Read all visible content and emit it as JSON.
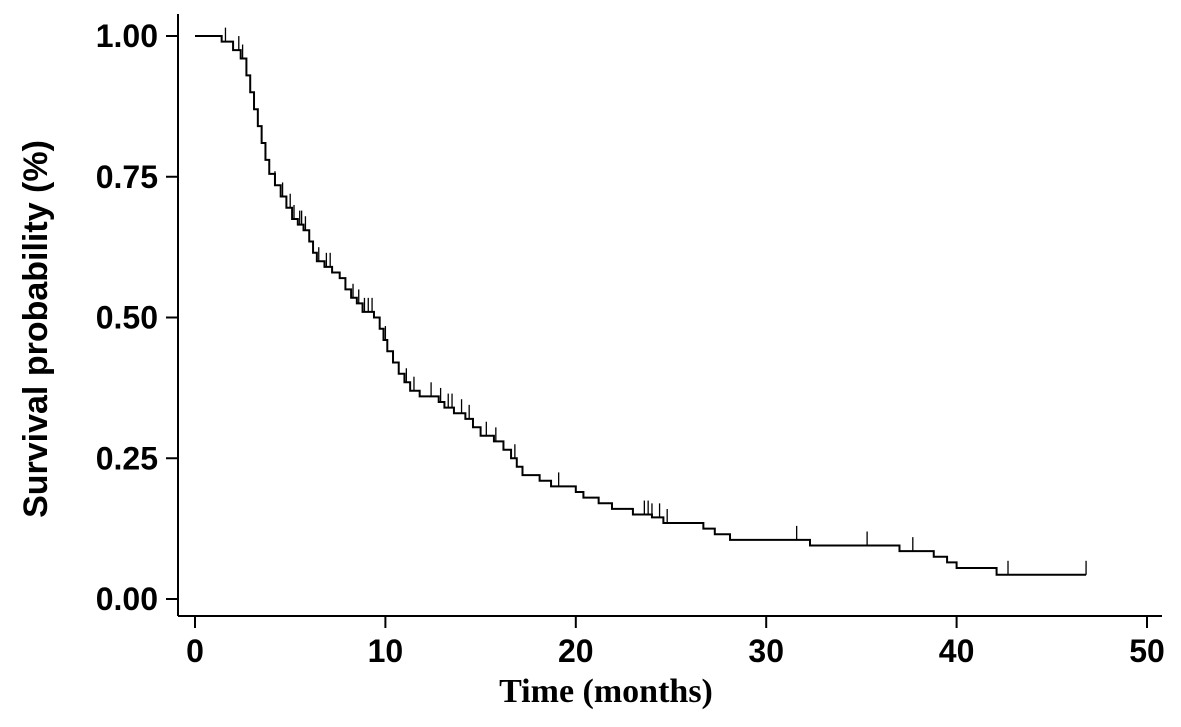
{
  "chart_data": {
    "type": "line",
    "subtype": "kaplan-meier",
    "xlabel": "Time (months)",
    "ylabel": "Survival probability (%)",
    "xlim": [
      0,
      50
    ],
    "ylim": [
      0,
      1
    ],
    "xticks": [
      0,
      10,
      20,
      30,
      40,
      50
    ],
    "xtick_labels": [
      "0",
      "10",
      "20",
      "30",
      "40",
      "50"
    ],
    "yticks": [
      0,
      0.25,
      0.5,
      0.75,
      1.0
    ],
    "ytick_labels": [
      "0.00",
      "0.25",
      "0.50",
      "0.75",
      "1.00"
    ],
    "grid": false,
    "line_color": "#000000",
    "series": [
      {
        "step_points": [
          [
            0,
            1.0
          ],
          [
            1.4,
            0.99
          ],
          [
            2.0,
            0.975
          ],
          [
            2.4,
            0.96
          ],
          [
            2.7,
            0.93
          ],
          [
            2.9,
            0.9
          ],
          [
            3.1,
            0.87
          ],
          [
            3.3,
            0.84
          ],
          [
            3.5,
            0.81
          ],
          [
            3.7,
            0.78
          ],
          [
            3.9,
            0.755
          ],
          [
            4.2,
            0.735
          ],
          [
            4.5,
            0.715
          ],
          [
            4.8,
            0.695
          ],
          [
            5.1,
            0.675
          ],
          [
            5.4,
            0.665
          ],
          [
            5.7,
            0.655
          ],
          [
            6.0,
            0.635
          ],
          [
            6.2,
            0.615
          ],
          [
            6.4,
            0.6
          ],
          [
            6.8,
            0.59
          ],
          [
            7.2,
            0.58
          ],
          [
            7.6,
            0.57
          ],
          [
            7.9,
            0.55
          ],
          [
            8.2,
            0.535
          ],
          [
            8.5,
            0.525
          ],
          [
            8.8,
            0.51
          ],
          [
            9.4,
            0.5
          ],
          [
            9.7,
            0.48
          ],
          [
            9.9,
            0.46
          ],
          [
            10.1,
            0.44
          ],
          [
            10.4,
            0.42
          ],
          [
            10.7,
            0.4
          ],
          [
            11.0,
            0.385
          ],
          [
            11.3,
            0.37
          ],
          [
            11.8,
            0.36
          ],
          [
            12.8,
            0.35
          ],
          [
            13.1,
            0.34
          ],
          [
            13.6,
            0.33
          ],
          [
            14.2,
            0.32
          ],
          [
            14.6,
            0.305
          ],
          [
            15.0,
            0.29
          ],
          [
            15.7,
            0.28
          ],
          [
            16.2,
            0.265
          ],
          [
            16.6,
            0.25
          ],
          [
            16.9,
            0.235
          ],
          [
            17.2,
            0.22
          ],
          [
            18.1,
            0.21
          ],
          [
            18.7,
            0.2
          ],
          [
            20.0,
            0.19
          ],
          [
            20.4,
            0.18
          ],
          [
            21.2,
            0.17
          ],
          [
            21.9,
            0.16
          ],
          [
            23.0,
            0.15
          ],
          [
            24.0,
            0.145
          ],
          [
            24.6,
            0.135
          ],
          [
            26.7,
            0.125
          ],
          [
            27.3,
            0.115
          ],
          [
            28.1,
            0.105
          ],
          [
            32.3,
            0.095
          ],
          [
            37.0,
            0.085
          ],
          [
            38.8,
            0.075
          ],
          [
            39.5,
            0.065
          ],
          [
            40.0,
            0.055
          ],
          [
            42.1,
            0.043
          ],
          [
            46.8,
            0.043
          ]
        ],
        "censor_times": [
          1.6,
          2.3,
          2.5,
          3.5,
          3.7,
          3.9,
          4.2,
          4.6,
          5.0,
          5.2,
          5.5,
          5.6,
          5.8,
          6.5,
          6.9,
          7.1,
          8.3,
          8.6,
          8.9,
          9.1,
          9.3,
          10.0,
          11.1,
          11.5,
          12.4,
          12.9,
          13.3,
          13.5,
          14.0,
          14.4,
          15.3,
          15.8,
          16.8,
          19.1,
          23.6,
          23.8,
          24.0,
          24.4,
          24.8,
          31.6,
          35.3,
          37.7,
          42.7,
          46.8
        ]
      }
    ]
  }
}
